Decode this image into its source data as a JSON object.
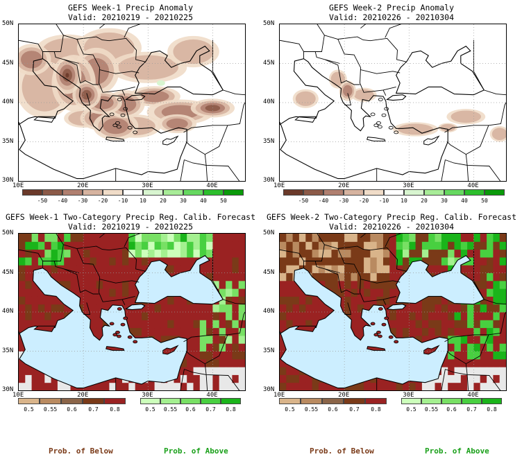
{
  "panels": [
    {
      "title": "GEFS Week-1 Precip Anomaly",
      "valid": "Valid: 20210219 - 20210225",
      "kind": "anomaly",
      "intensity": 1.0
    },
    {
      "title": "GEFS Week-2 Precip Anomaly",
      "valid": "Valid: 20210226 - 20210304",
      "kind": "anomaly",
      "intensity": 0.35
    },
    {
      "title": "GEFS Week-1 Two-Category Precip Reg. Calib. Forecast",
      "valid": "Valid: 20210219 - 20210225",
      "kind": "prob",
      "week": 1
    },
    {
      "title": "GEFS Week-2 Two-Category Precip Reg. Calib. Forecast",
      "valid": "Valid: 20210226 - 20210304",
      "kind": "prob",
      "week": 2
    }
  ],
  "axes": {
    "lat_labels": [
      "50N",
      "45N",
      "40N",
      "35N",
      "30N"
    ],
    "lon_labels": [
      "10E",
      "20E",
      "30E",
      "40E"
    ]
  },
  "anomaly_colorbar": {
    "labels": [
      "-50",
      "-40",
      "-30",
      "-20",
      "-10",
      "10",
      "20",
      "30",
      "40",
      "50"
    ],
    "colors": [
      "#6b3a2a",
      "#8c5a48",
      "#b08070",
      "#d6b3a0",
      "#f0dcc8",
      "#ffffff",
      "#d8f5d0",
      "#a8ec98",
      "#66d860",
      "#2cbe2c",
      "#0a9a0a"
    ]
  },
  "prob_below_colorbar": {
    "labels": [
      "0.5",
      "0.55",
      "0.6",
      "0.7",
      "0.8"
    ],
    "colors": [
      "#d9b48a",
      "#b98a60",
      "#8a6448",
      "#7a3a18",
      "#9a2222"
    ]
  },
  "prob_above_colorbar": {
    "labels": [
      "0.5",
      "0.55",
      "0.6",
      "0.7",
      "0.8"
    ],
    "colors": [
      "#ccffbb",
      "#a4f090",
      "#78e064",
      "#48d040",
      "#1ab41a"
    ]
  },
  "legend": {
    "below_label": "Prob. of Below",
    "above_label": "Prob. of Above",
    "below_color": "#7a3a18",
    "above_color": "#1aa01a"
  },
  "colors": {
    "sea": "#cceeff",
    "nodata": "#e8e8e8",
    "grid": "#999999"
  }
}
